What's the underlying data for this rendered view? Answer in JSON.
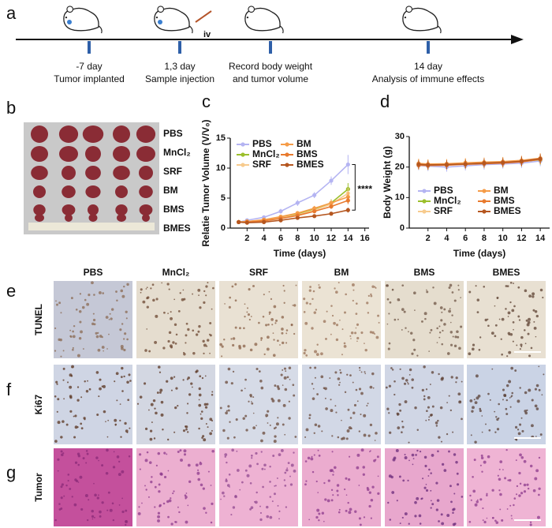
{
  "panel_labels": [
    "a",
    "b",
    "c",
    "d",
    "e",
    "f",
    "g"
  ],
  "timeline": {
    "events": [
      [
        "-7 day",
        "Tumor implanted"
      ],
      [
        "1,3 day",
        "Sample injection"
      ],
      [
        "Record body weight",
        "and tumor volume"
      ],
      [
        "14 day",
        "Analysis of immune effects"
      ]
    ],
    "route": "iv"
  },
  "tumor_photo": {
    "groups": [
      "PBS",
      "MnCl₂",
      "SRF",
      "BM",
      "BMS",
      "BMES"
    ]
  },
  "histology": {
    "groups": [
      "PBS",
      "MnCl₂",
      "SRF",
      "BM",
      "BMS",
      "BMES"
    ],
    "stains": [
      "TUNEL",
      "Ki67",
      "Tumor"
    ]
  },
  "chart_data": [
    {
      "type": "line",
      "x_label": "Time (days)",
      "y_label": "Relatie Tumor Volume (V/V₀)",
      "x": [
        1,
        2,
        4,
        6,
        8,
        10,
        12,
        14
      ],
      "xlim": [
        0,
        16.5
      ],
      "xticks": [
        2,
        4,
        6,
        8,
        10,
        12,
        14,
        16
      ],
      "ylim": [
        0,
        15
      ],
      "yticks": [
        0,
        5,
        10,
        15
      ],
      "annotation": "****",
      "series": [
        {
          "name": "PBS",
          "color": "#b4b4f2",
          "values": [
            1,
            1.3,
            1.8,
            2.8,
            4.2,
            5.5,
            7.9,
            10.6
          ],
          "errors": [
            0.2,
            0.3,
            0.3,
            0.4,
            0.5,
            0.5,
            0.7,
            1.6
          ]
        },
        {
          "name": "MnCl₂",
          "color": "#9cbf2c",
          "values": [
            1,
            1.1,
            1.3,
            1.8,
            2.4,
            3.2,
            4.2,
            6.5
          ],
          "errors": [
            0.2,
            0.3,
            0.3,
            0.3,
            0.4,
            0.4,
            0.6,
            1.0
          ]
        },
        {
          "name": "SRF",
          "color": "#f7cb8e",
          "values": [
            1,
            1.1,
            1.3,
            1.7,
            2.2,
            3.0,
            4.0,
            5.8
          ],
          "errors": [
            0.2,
            0.3,
            0.3,
            0.3,
            0.4,
            0.4,
            0.5,
            0.9
          ]
        },
        {
          "name": "BM",
          "color": "#f59c48",
          "values": [
            1,
            1.1,
            1.4,
            1.9,
            2.5,
            3.3,
            4.2,
            5.2
          ],
          "errors": [
            0.2,
            0.2,
            0.3,
            0.3,
            0.3,
            0.4,
            0.5,
            0.8
          ]
        },
        {
          "name": "BMS",
          "color": "#e87a2e",
          "values": [
            1,
            1.0,
            1.2,
            1.6,
            2.1,
            2.8,
            3.6,
            4.6
          ],
          "errors": [
            0.2,
            0.2,
            0.2,
            0.3,
            0.3,
            0.3,
            0.4,
            0.6
          ]
        },
        {
          "name": "BMES",
          "color": "#b5561f",
          "values": [
            1,
            0.9,
            1.0,
            1.3,
            1.7,
            2.0,
            2.4,
            3.0
          ],
          "errors": [
            0.2,
            0.2,
            0.2,
            0.2,
            0.2,
            0.3,
            0.3,
            0.4
          ]
        }
      ]
    },
    {
      "type": "line",
      "x_label": "Time (days)",
      "y_label": "Body Weight (g)",
      "x": [
        1,
        2,
        4,
        6,
        8,
        10,
        12,
        14
      ],
      "xlim": [
        0,
        15
      ],
      "xticks": [
        2,
        4,
        6,
        8,
        10,
        12,
        14
      ],
      "ylim": [
        0,
        30
      ],
      "yticks": [
        0,
        10,
        20,
        30
      ],
      "series": [
        {
          "name": "PBS",
          "color": "#b4b4f2",
          "values": [
            20.5,
            20.3,
            20.0,
            20.4,
            20.8,
            21.0,
            21.3,
            22.0
          ],
          "errors": [
            1.5,
            1.6,
            1.5,
            1.5,
            1.6,
            1.5,
            1.6,
            1.7
          ]
        },
        {
          "name": "MnCl₂",
          "color": "#9cbf2c",
          "values": [
            20.8,
            20.6,
            20.7,
            21.0,
            21.2,
            21.4,
            21.8,
            22.4
          ],
          "errors": [
            1.4,
            1.5,
            1.4,
            1.5,
            1.4,
            1.5,
            1.5,
            1.6
          ]
        },
        {
          "name": "SRF",
          "color": "#f7cb8e",
          "values": [
            21.0,
            20.9,
            21.0,
            21.2,
            21.3,
            21.6,
            22.0,
            22.6
          ],
          "errors": [
            1.5,
            1.5,
            1.5,
            1.5,
            1.5,
            1.5,
            1.5,
            1.6
          ]
        },
        {
          "name": "BM",
          "color": "#f59c48",
          "values": [
            21.2,
            21.0,
            21.1,
            21.4,
            21.6,
            21.8,
            22.2,
            22.9
          ],
          "errors": [
            1.5,
            1.5,
            1.5,
            1.5,
            1.5,
            1.5,
            1.5,
            1.6
          ]
        },
        {
          "name": "BMS",
          "color": "#e87a2e",
          "values": [
            20.6,
            20.5,
            20.6,
            20.9,
            21.1,
            21.3,
            21.7,
            22.5
          ],
          "errors": [
            1.4,
            1.4,
            1.4,
            1.4,
            1.4,
            1.4,
            1.5,
            1.5
          ]
        },
        {
          "name": "BMES",
          "color": "#b5561f",
          "values": [
            20.9,
            20.7,
            20.8,
            21.0,
            21.3,
            21.5,
            21.9,
            22.7
          ],
          "errors": [
            1.4,
            1.4,
            1.4,
            1.4,
            1.4,
            1.4,
            1.5,
            1.5
          ]
        }
      ]
    }
  ]
}
